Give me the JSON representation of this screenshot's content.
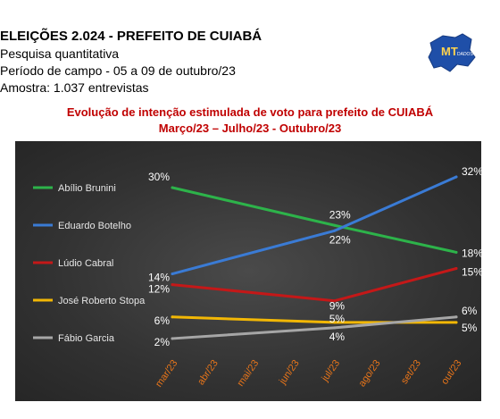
{
  "header": {
    "line1": "ELEIÇÕES 2.024  -  PREFEITO DE CUIABÁ",
    "line2": "Pesquisa quantitativa",
    "line3": "Período de campo - 05 a 09 de outubro/23",
    "line4": "Amostra: 1.037 entrevistas"
  },
  "logo": {
    "text": "MT",
    "subtext": "DADOS",
    "icon": "mato-grosso-map-logo"
  },
  "chart_data": {
    "type": "line",
    "title": "Evolução de intenção estimulada de voto para prefeito de CUIABÁ",
    "subtitle": "Março/23 – Julho/23 -  Outubro/23",
    "categories": [
      "mar/23",
      "abr/23",
      "mai/23",
      "jun/23",
      "jul/23",
      "ago/23",
      "set/23",
      "out/23"
    ],
    "legend_position": "left",
    "grid": false,
    "ylim": [
      0,
      35
    ],
    "series": [
      {
        "name": "Abílio Brunini",
        "color": "#2db34a",
        "points": [
          {
            "x": "mar/23",
            "y": 30,
            "label": "30%"
          },
          {
            "x": "jul/23",
            "y": 23,
            "label": "23%"
          },
          {
            "x": "out/23",
            "y": 18,
            "label": "18%"
          }
        ]
      },
      {
        "name": "Eduardo Botelho",
        "color": "#3a7bd5",
        "points": [
          {
            "x": "mar/23",
            "y": 14,
            "label": "14%"
          },
          {
            "x": "jul/23",
            "y": 22,
            "label": "22%"
          },
          {
            "x": "out/23",
            "y": 32,
            "label": "32%"
          }
        ]
      },
      {
        "name": "Lúdio Cabral",
        "color": "#c41818",
        "points": [
          {
            "x": "mar/23",
            "y": 12,
            "label": "12%"
          },
          {
            "x": "jul/23",
            "y": 9,
            "label": "9%"
          },
          {
            "x": "out/23",
            "y": 15,
            "label": "15%"
          }
        ]
      },
      {
        "name": "José Roberto Stopa",
        "color": "#f2b705",
        "points": [
          {
            "x": "mar/23",
            "y": 6,
            "label": "6%"
          },
          {
            "x": "jul/23",
            "y": 5,
            "label": "5%"
          },
          {
            "x": "out/23",
            "y": 5,
            "label": "5%"
          }
        ]
      },
      {
        "name": "Fábio Garcia",
        "color": "#a6a6a6",
        "points": [
          {
            "x": "mar/23",
            "y": 2,
            "label": "2%"
          },
          {
            "x": "jul/23",
            "y": 4,
            "label": "4%"
          },
          {
            "x": "out/23",
            "y": 6,
            "label": "6%"
          }
        ]
      }
    ],
    "tick_color": "#e8751a"
  }
}
